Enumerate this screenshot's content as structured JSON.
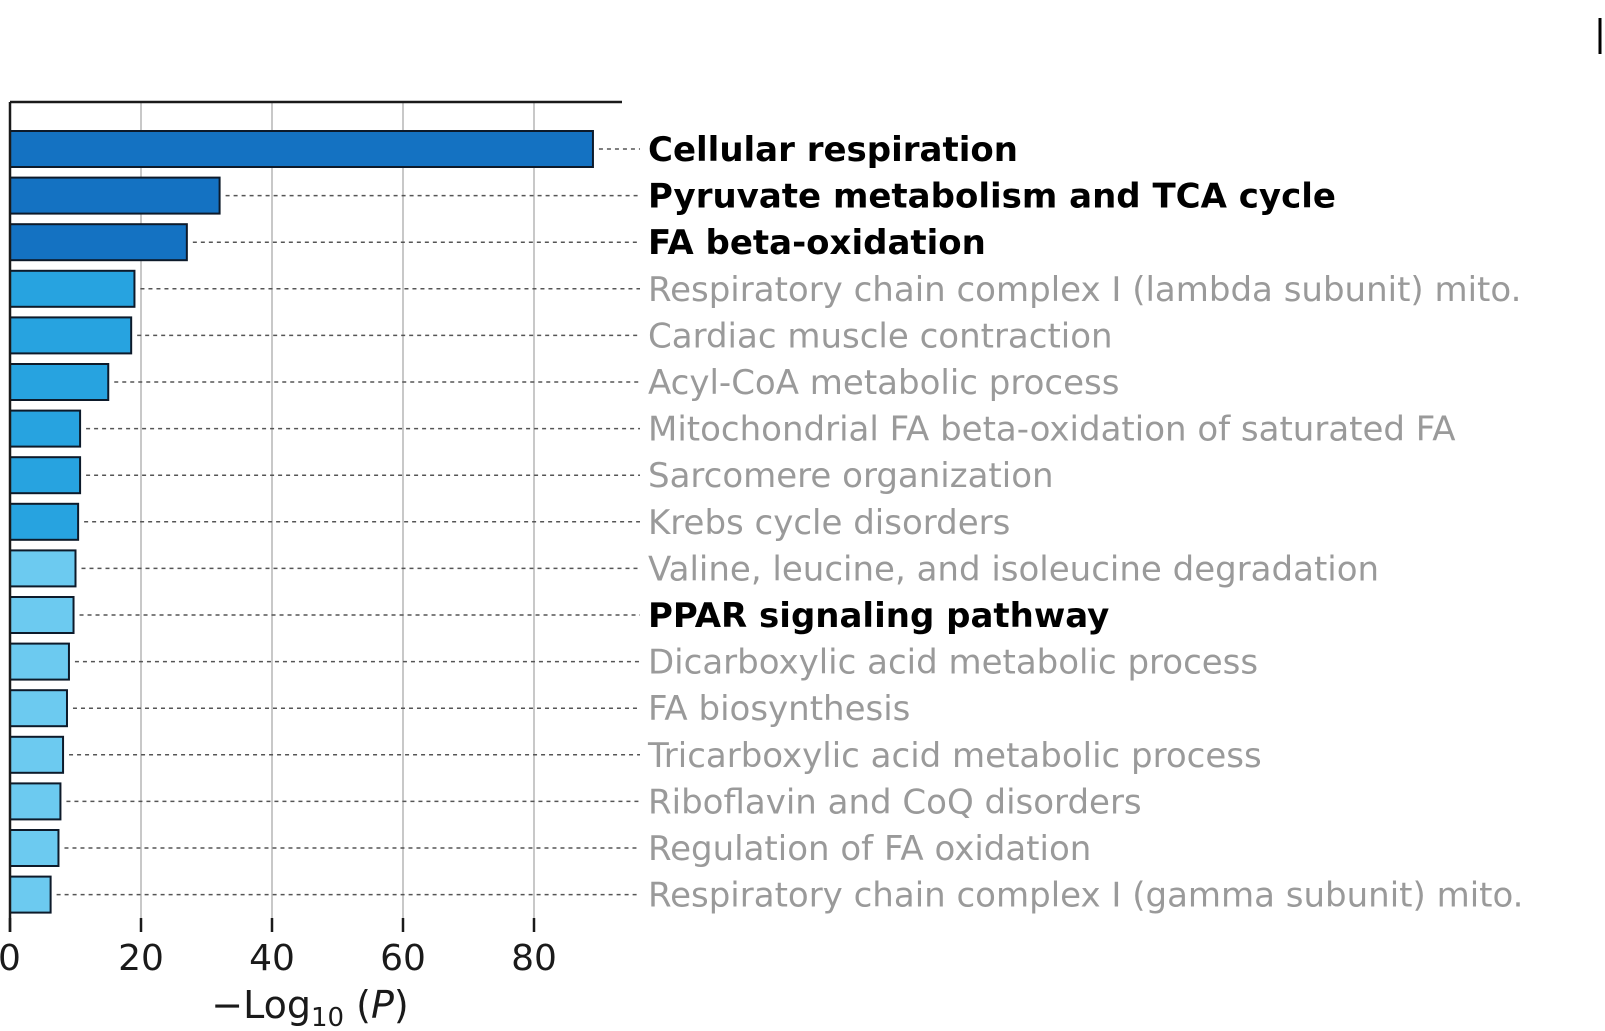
{
  "chart_data": {
    "type": "bar",
    "orientation": "horizontal",
    "categories": [
      "Cellular respiration",
      "Pyruvate metabolism and TCA cycle",
      "FA beta-oxidation",
      "Respiratory chain complex I (lambda subunit) mito.",
      "Cardiac muscle contraction",
      "Acyl-CoA metabolic process",
      "Mitochondrial FA beta-oxidation of saturated FA",
      "Sarcomere organization",
      "Krebs cycle disorders",
      "Valine, leucine, and isoleucine degradation",
      "PPAR signaling pathway",
      "Dicarboxylic acid metabolic process",
      "FA biosynthesis",
      "Tricarboxylic acid metabolic process",
      "Riboflavin and CoQ disorders",
      "Regulation of FA oxidation",
      "Respiratory chain complex I (gamma subunit) mito."
    ],
    "values": [
      89,
      32,
      27,
      19,
      18.5,
      15,
      10.7,
      10.7,
      10.4,
      10,
      9.7,
      9,
      8.7,
      8.1,
      7.7,
      7.4,
      6.2
    ],
    "highlighted": [
      true,
      true,
      true,
      false,
      false,
      false,
      false,
      false,
      false,
      false,
      true,
      false,
      false,
      false,
      false,
      false,
      false
    ],
    "bar_colors": [
      "#1472c2",
      "#1472c2",
      "#1472c2",
      "#27a3e0",
      "#27a3e0",
      "#27a3e0",
      "#27a3e0",
      "#27a3e0",
      "#27a3e0",
      "#6ccaf0",
      "#6ccaf0",
      "#6ccaf0",
      "#6ccaf0",
      "#6ccaf0",
      "#6ccaf0",
      "#6ccaf0",
      "#6ccaf0"
    ],
    "xlabel": {
      "prefix": "−Log",
      "sub": "10",
      "mid": " (",
      "var": "P",
      "suffix": ")"
    },
    "xticks": [
      0,
      20,
      40,
      60,
      80
    ],
    "xlim": [
      0,
      93
    ],
    "grid": "vertical",
    "label_color_highlight": "#000000",
    "label_color_default": "#9a9a9a"
  }
}
